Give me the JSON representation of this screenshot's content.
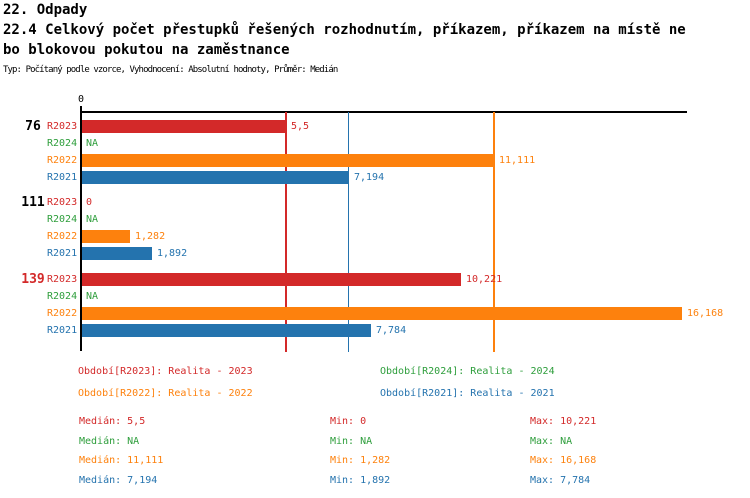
{
  "header": {
    "section_title": "22. Odpady",
    "title_line1": "22.4 Celkový počet přestupků řešených rozhodnutím, příkazem, příkazem na místě ne",
    "title_line2": "bo blokovou pokutou na zaměstnance",
    "meta": "Typ: Počítaný podle vzorce, Vyhodnocení: Absolutní hodnoty, Průměr: Medián"
  },
  "chart_data": {
    "type": "bar",
    "orientation": "horizontal",
    "x_axis": {
      "origin_tick_label": "0",
      "min": 0,
      "max_visible": 16.3,
      "grid": false
    },
    "series_order": [
      "R2023",
      "R2024",
      "R2022",
      "R2021"
    ],
    "series_colors": {
      "R2023": "#d32929",
      "R2024": "#2e9e3c",
      "R2022": "#fd810d",
      "R2021": "#2473ae"
    },
    "groups": [
      {
        "id": "76",
        "id_color": "#000000",
        "bars": [
          {
            "series": "R2023",
            "value": 5.5,
            "label": "5,5"
          },
          {
            "series": "R2024",
            "value": null,
            "label": "NA"
          },
          {
            "series": "R2022",
            "value": 11.111,
            "label": "11,111"
          },
          {
            "series": "R2021",
            "value": 7.194,
            "label": "7,194"
          }
        ]
      },
      {
        "id": "111",
        "id_color": "#000000",
        "bars": [
          {
            "series": "R2023",
            "value": 0,
            "label": "0"
          },
          {
            "series": "R2024",
            "value": null,
            "label": "NA"
          },
          {
            "series": "R2022",
            "value": 1.282,
            "label": "1,282"
          },
          {
            "series": "R2021",
            "value": 1.892,
            "label": "1,892"
          }
        ]
      },
      {
        "id": "139",
        "id_color": "#d32929",
        "bars": [
          {
            "series": "R2023",
            "value": 10.221,
            "label": "10,221"
          },
          {
            "series": "R2024",
            "value": null,
            "label": "NA"
          },
          {
            "series": "R2022",
            "value": 16.168,
            "label": "16,168"
          },
          {
            "series": "R2021",
            "value": 7.784,
            "label": "7,784"
          }
        ]
      }
    ],
    "median_lines": [
      {
        "series": "R2023",
        "value": 5.5
      },
      {
        "series": "R2022",
        "value": 11.111
      },
      {
        "series": "R2021",
        "value": 7.194
      }
    ]
  },
  "legend": {
    "items": [
      {
        "series": "R2023",
        "label": "Období[R2023]: Realita - 2023",
        "color": "#d32929"
      },
      {
        "series": "R2024",
        "label": "Období[R2024]: Realita - 2024",
        "color": "#2e9e3c"
      },
      {
        "series": "R2022",
        "label": "Období[R2022]: Realita - 2022",
        "color": "#fd810d"
      },
      {
        "series": "R2021",
        "label": "Období[R2021]: Realita - 2021",
        "color": "#2473ae"
      }
    ]
  },
  "stats": {
    "rows": [
      {
        "series": "R2023",
        "color": "#d32929",
        "median": "Medián: 5,5",
        "min": "Min: 0",
        "max": "Max: 10,221"
      },
      {
        "series": "R2024",
        "color": "#2e9e3c",
        "median": "Medián: NA",
        "min": "Min: NA",
        "max": "Max: NA"
      },
      {
        "series": "R2022",
        "color": "#fd810d",
        "median": "Medián: 11,111",
        "min": "Min: 1,282",
        "max": "Max: 16,168"
      },
      {
        "series": "R2021",
        "color": "#2473ae",
        "median": "Medián: 7,194",
        "min": "Min: 1,892",
        "max": "Max: 7,784"
      }
    ]
  }
}
